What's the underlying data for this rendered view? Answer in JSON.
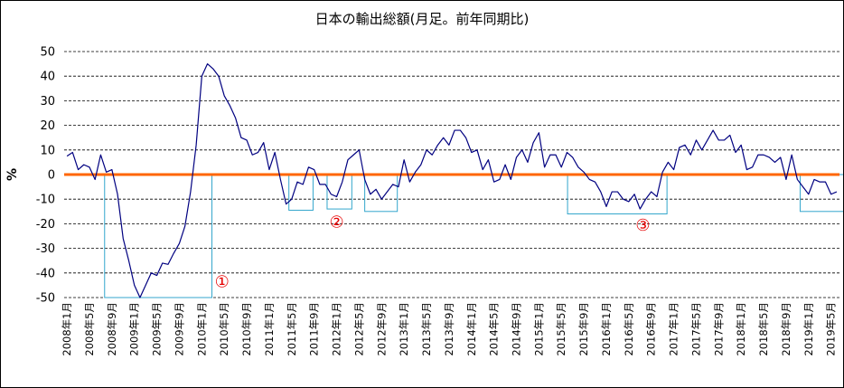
{
  "chart_data": {
    "type": "line",
    "title": "日本の輸出総額(月足。前年同期比)",
    "ylabel": "%",
    "xlabel": "",
    "ylim": [
      -50,
      50
    ],
    "yticks": [
      50,
      40,
      30,
      20,
      10,
      0,
      -10,
      -20,
      -30,
      -40,
      -50
    ],
    "grid": "horizontal-dashed",
    "legend": "none",
    "x_tick_labels": [
      "2008年1月",
      "2008年5月",
      "2008年9月",
      "2009年1月",
      "2009年5月",
      "2009年9月",
      "2010年1月",
      "2010年5月",
      "2010年9月",
      "2011年1月",
      "2011年5月",
      "2011年9月",
      "2012年1月",
      "2012年5月",
      "2012年9月",
      "2013年1月",
      "2013年5月",
      "2013年9月",
      "2014年1月",
      "2014年5月",
      "2014年9月",
      "2015年1月",
      "2015年5月",
      "2015年9月",
      "2016年1月",
      "2016年5月",
      "2016年9月",
      "2017年1月",
      "2017年5月",
      "2017年9月",
      "2018年1月",
      "2018年5月",
      "2018年9月",
      "2019年1月",
      "2019年5月"
    ],
    "series": [
      {
        "name": "",
        "color": "#000080",
        "x_start": "2008年1月",
        "frequency": "monthly",
        "values": [
          7.5,
          9,
          2,
          4,
          3,
          -2,
          8,
          1,
          2,
          -8,
          -26,
          -35,
          -45,
          -50,
          -45,
          -40,
          -41,
          -36,
          -36.5,
          -32,
          -28,
          -21,
          -7,
          12,
          40,
          45,
          43,
          40,
          32,
          28,
          23,
          15,
          14,
          8,
          9,
          13,
          2,
          9,
          -2,
          -12,
          -10,
          -3,
          -4,
          3,
          2,
          -4,
          -4,
          -8,
          -9,
          -3,
          6,
          8,
          10,
          -2,
          -8,
          -6,
          -10,
          -7,
          -4,
          -5,
          6,
          -3,
          1,
          4,
          10,
          8,
          12,
          15,
          12,
          18,
          18,
          15,
          9,
          10,
          2,
          6,
          -3,
          -2,
          4,
          -2,
          7,
          10,
          5,
          13,
          17,
          3,
          8,
          8,
          3,
          9,
          7,
          3,
          1,
          -2,
          -3,
          -7,
          -13,
          -7,
          -7,
          -10,
          -11,
          -8,
          -14,
          -10,
          -7,
          -9,
          1,
          5,
          2,
          11,
          12,
          8,
          14,
          10,
          14,
          18,
          14,
          14,
          16,
          9,
          12,
          2,
          3,
          8,
          8,
          7,
          5,
          7,
          -2,
          8,
          -2,
          -5,
          -8,
          -2,
          -3,
          -3,
          -8,
          -7
        ]
      }
    ],
    "zero_line_color": "#ff6600",
    "boxes_color": "#33a6cc",
    "annotations": [
      {
        "text": "①",
        "color": "#e60000"
      },
      {
        "text": "②",
        "color": "#e60000"
      },
      {
        "text": "③",
        "color": "#e60000"
      }
    ]
  }
}
